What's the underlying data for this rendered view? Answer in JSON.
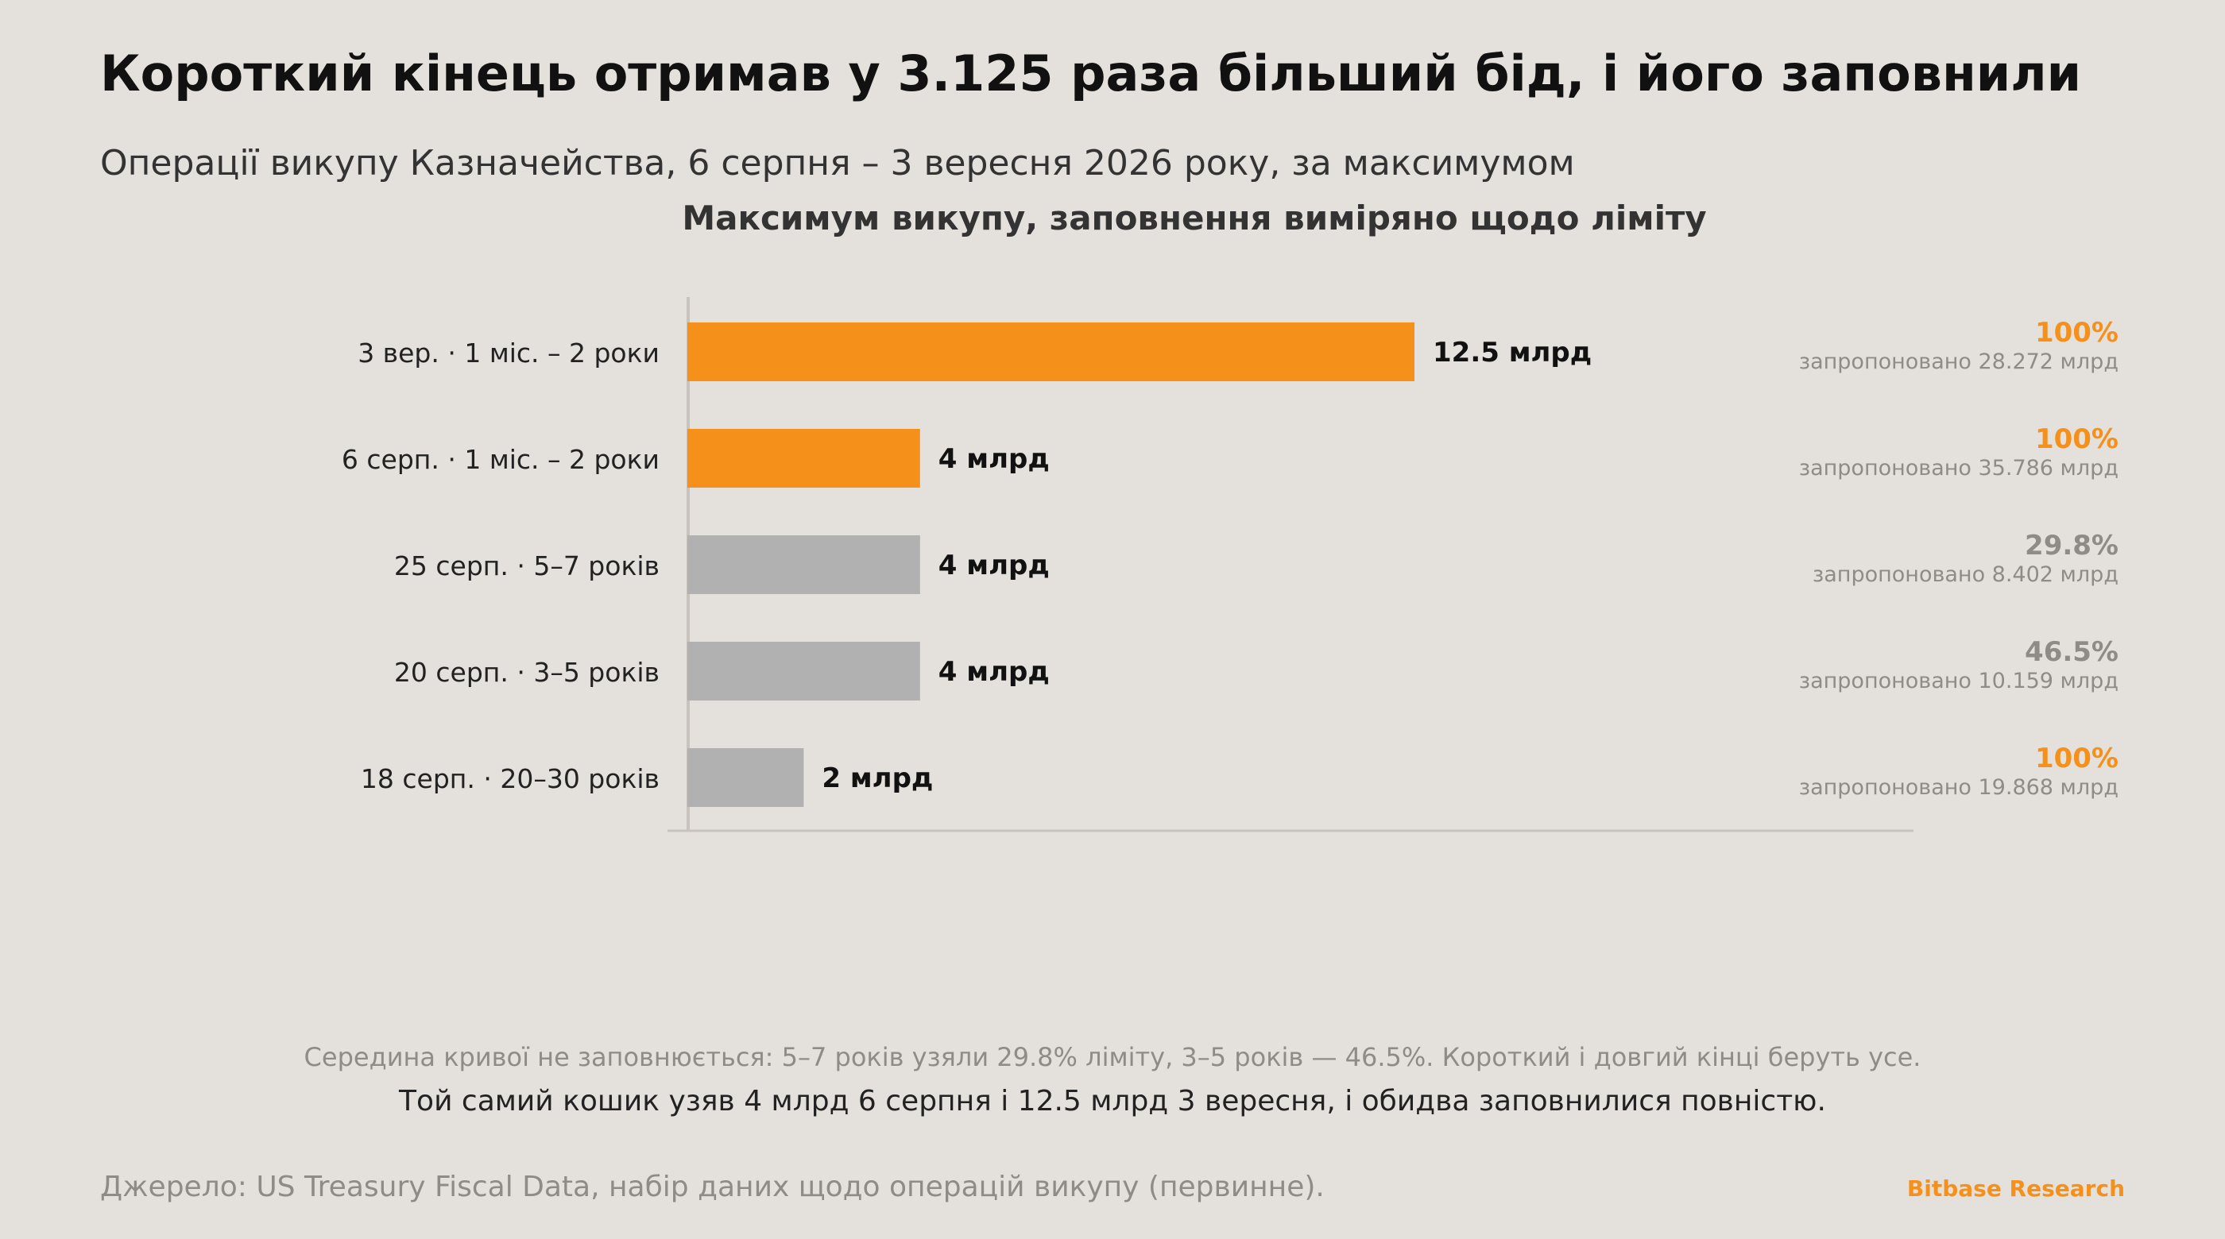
{
  "header": {
    "title": "Короткий кінець отримав у 3.125 раза більший бід, і його заповнили",
    "subtitle": "Операції викупу Казначейства, 6 серпня – 3 вересня 2026 року, за максимумом"
  },
  "chart_data": {
    "type": "bar",
    "orientation": "horizontal",
    "title": "Максимум викупу, заповнення виміряно щодо ліміту",
    "xlim": [
      0,
      21
    ],
    "grid": false,
    "rows": [
      {
        "label": "3 вер. · 1 міс. – 2 роки",
        "value": 12.5,
        "value_label": "12.5 млрд",
        "fill_pct": 100,
        "fill_label": "100%",
        "offered_label": "запропоновано 28.272 млрд",
        "highlight": true
      },
      {
        "label": "6 серп. · 1 міс. – 2 роки",
        "value": 4,
        "value_label": "4 млрд",
        "fill_pct": 100,
        "fill_label": "100%",
        "offered_label": "запропоновано 35.786 млрд",
        "highlight": true
      },
      {
        "label": "25 серп. · 5–7 років",
        "value": 4,
        "value_label": "4 млрд",
        "fill_pct": 29.8,
        "fill_label": "29.8%",
        "offered_label": "запропоновано 8.402 млрд",
        "highlight": false
      },
      {
        "label": "20 серп. · 3–5 років",
        "value": 4,
        "value_label": "4 млрд",
        "fill_pct": 46.5,
        "fill_label": "46.5%",
        "offered_label": "запропоновано 10.159 млрд",
        "highlight": false
      },
      {
        "label": "18 серп. · 20–30 років",
        "value": 2,
        "value_label": "2 млрд",
        "fill_pct": 100,
        "fill_label": "100%",
        "offered_label": "запропоновано 19.868 млрд",
        "highlight": false
      }
    ],
    "colors": {
      "highlight_bar": "#f5901a",
      "muted_bar": "#b1b1b1",
      "full_fill_text": "#f5901a",
      "partial_fill_text": "#8f8b86",
      "axis": "#c8c3bd"
    }
  },
  "notes": {
    "line1": "Середина кривої не заповнюється: 5–7 років узяли 29.8% ліміту, 3–5 років — 46.5%. Короткий і довгий кінці беруть усе.",
    "line2": "Той самий кошик узяв 4 млрд 6 серпня і 12.5 млрд 3 вересня, і обидва заповнилися повністю."
  },
  "footer": {
    "source": "Джерело: US Treasury Fiscal Data, набір даних щодо операцій викупу (первинне).",
    "brand": "Bitbase Research"
  }
}
